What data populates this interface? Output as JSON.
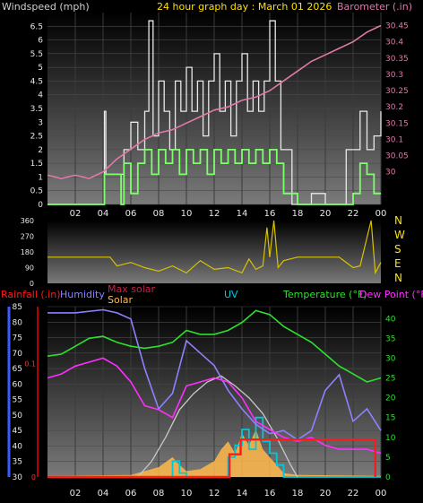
{
  "header": {
    "left_label": "Windspeed (mph)",
    "title": "24 hour graph day : March 01 2026",
    "right_label": "Barometer (.in)"
  },
  "colors": {
    "windspeed": "#e8e8e8",
    "gust": "#7dff6b",
    "barometer": "#e07aa8",
    "direction": "#d8c200",
    "humidity": "#8c82ff",
    "temperature": "#2ee02e",
    "dewpoint": "#ff2eff",
    "max_solar": "#c8c8c8",
    "solar": "#ffb84a",
    "uv": "#00c8d8",
    "rain": "#ff1a1a",
    "axis_blue": "#3b5bff",
    "title": "#ffe000"
  },
  "chart_data": [
    {
      "type": "line",
      "name": "wind-barometer",
      "x_ticks": [
        "02",
        "04",
        "06",
        "08",
        "10",
        "12",
        "14",
        "16",
        "18",
        "20",
        "22",
        "00"
      ],
      "ylim_left": [
        0,
        7
      ],
      "left_ticks": [
        "0",
        "0.5",
        "1",
        "1.5",
        "2",
        "2.5",
        "3",
        "3.5",
        "4",
        "4.5",
        "5",
        "5.5",
        "6",
        "6.5"
      ],
      "ylim_right": [
        29.9,
        30.49
      ],
      "right_ticks": [
        "30",
        "30.05",
        "30.1",
        "30.15",
        "30.2",
        "30.25",
        "30.3",
        "30.35",
        "30.4",
        "30.45"
      ],
      "wind_avg": [
        [
          0,
          0
        ],
        [
          3.9,
          0
        ],
        [
          4.1,
          1.1
        ],
        [
          5.2,
          1.1
        ],
        [
          5.3,
          0
        ],
        [
          5.5,
          1.5
        ],
        [
          6,
          0.4
        ],
        [
          6.5,
          1.5
        ],
        [
          7,
          2
        ],
        [
          7.5,
          1.1
        ],
        [
          8,
          2
        ],
        [
          8.5,
          1.5
        ],
        [
          9,
          2
        ],
        [
          9.5,
          1.1
        ],
        [
          10,
          2
        ],
        [
          10.5,
          1.5
        ],
        [
          11,
          2
        ],
        [
          11.5,
          1.1
        ],
        [
          12,
          2
        ],
        [
          12.5,
          1.5
        ],
        [
          13,
          2
        ],
        [
          13.5,
          1.5
        ],
        [
          14,
          2
        ],
        [
          14.5,
          1.5
        ],
        [
          15,
          2
        ],
        [
          15.5,
          1.5
        ],
        [
          16,
          2
        ],
        [
          16.5,
          1.5
        ],
        [
          17,
          0.4
        ],
        [
          17.5,
          0.4
        ],
        [
          18,
          0
        ],
        [
          21.5,
          0
        ],
        [
          22,
          0.4
        ],
        [
          22.5,
          1.5
        ],
        [
          23,
          1.1
        ],
        [
          23.5,
          0.4
        ],
        [
          24,
          0.4
        ]
      ],
      "wind_gust": [
        [
          0,
          0
        ],
        [
          4.0,
          0
        ],
        [
          4.1,
          3.4
        ],
        [
          4.2,
          1.1
        ],
        [
          5.5,
          2
        ],
        [
          6,
          3
        ],
        [
          6.5,
          2
        ],
        [
          7,
          3.4
        ],
        [
          7.3,
          6.7
        ],
        [
          7.6,
          2.5
        ],
        [
          8,
          4.5
        ],
        [
          8.4,
          3.4
        ],
        [
          8.8,
          2
        ],
        [
          9.2,
          4.5
        ],
        [
          9.6,
          3.4
        ],
        [
          10,
          5
        ],
        [
          10.4,
          3.4
        ],
        [
          10.8,
          4.5
        ],
        [
          11.2,
          2.5
        ],
        [
          11.6,
          4.5
        ],
        [
          12,
          5.5
        ],
        [
          12.4,
          3.4
        ],
        [
          12.8,
          4.5
        ],
        [
          13.2,
          2.5
        ],
        [
          13.6,
          4.5
        ],
        [
          14,
          5.5
        ],
        [
          14.4,
          3.4
        ],
        [
          14.8,
          4.5
        ],
        [
          15.2,
          3.4
        ],
        [
          15.6,
          4.5
        ],
        [
          16,
          6.7
        ],
        [
          16.4,
          4.5
        ],
        [
          16.8,
          2
        ],
        [
          17.2,
          2
        ],
        [
          17.6,
          0
        ],
        [
          18,
          0
        ],
        [
          19,
          0.4
        ],
        [
          20,
          0
        ],
        [
          21.5,
          2
        ],
        [
          22,
          2
        ],
        [
          22.5,
          3.4
        ],
        [
          23,
          2
        ],
        [
          23.5,
          2.5
        ],
        [
          24,
          3.4
        ]
      ],
      "barometer": [
        [
          0,
          29.99
        ],
        [
          1,
          29.98
        ],
        [
          2,
          29.99
        ],
        [
          3,
          29.98
        ],
        [
          4,
          30.0
        ],
        [
          5,
          30.04
        ],
        [
          6,
          30.07
        ],
        [
          7,
          30.1
        ],
        [
          8,
          30.12
        ],
        [
          9,
          30.13
        ],
        [
          10,
          30.15
        ],
        [
          11,
          30.17
        ],
        [
          12,
          30.19
        ],
        [
          13,
          30.2
        ],
        [
          14,
          30.22
        ],
        [
          15,
          30.23
        ],
        [
          16,
          30.25
        ],
        [
          17,
          30.28
        ],
        [
          18,
          30.31
        ],
        [
          19,
          30.34
        ],
        [
          20,
          30.36
        ],
        [
          21,
          30.38
        ],
        [
          22,
          30.4
        ],
        [
          23,
          30.43
        ],
        [
          24,
          30.45
        ]
      ]
    },
    {
      "type": "line",
      "name": "wind-direction",
      "ylim": [
        0,
        360
      ],
      "y_ticks": [
        "0",
        "90",
        "180",
        "270",
        "360"
      ],
      "compass": [
        "N",
        "W",
        "S",
        "E",
        "N"
      ],
      "values": [
        [
          0,
          150
        ],
        [
          4.5,
          150
        ],
        [
          5,
          100
        ],
        [
          6,
          120
        ],
        [
          7,
          90
        ],
        [
          8,
          70
        ],
        [
          9,
          100
        ],
        [
          10,
          60
        ],
        [
          11,
          130
        ],
        [
          12,
          80
        ],
        [
          13,
          90
        ],
        [
          14,
          60
        ],
        [
          14.5,
          140
        ],
        [
          15,
          80
        ],
        [
          15.5,
          100
        ],
        [
          15.8,
          320
        ],
        [
          16,
          150
        ],
        [
          16.3,
          360
        ],
        [
          16.6,
          90
        ],
        [
          17,
          130
        ],
        [
          18,
          150
        ],
        [
          21,
          150
        ],
        [
          22,
          90
        ],
        [
          22.5,
          100
        ],
        [
          23.3,
          360
        ],
        [
          23.6,
          60
        ],
        [
          24,
          120
        ]
      ]
    },
    {
      "type": "line",
      "name": "temperature-humidity",
      "header": {
        "rainfall": "Rainfall (.in)",
        "humidity": "Humidity",
        "max_solar": "Max solar",
        "solar": "Solar",
        "uv": "UV",
        "temperature": "Temperature (°F)",
        "dewpoint": "Dew Point (°F)"
      },
      "ylim_humidity": [
        30,
        85
      ],
      "humidity_ticks": [
        "30",
        "35",
        "40",
        "45",
        "50",
        "55",
        "60",
        "65",
        "70",
        "75",
        "80",
        "85"
      ],
      "ylim_temp": [
        0,
        43
      ],
      "temp_ticks": [
        "0",
        "5",
        "10",
        "15",
        "20",
        "25",
        "30",
        "35",
        "40"
      ],
      "ylim_rain": [
        0,
        0.15
      ],
      "rain_ticks": [
        "0",
        "0.1"
      ],
      "temperature": [
        [
          0,
          30.5
        ],
        [
          1,
          31
        ],
        [
          2,
          33
        ],
        [
          3,
          35
        ],
        [
          4,
          35.5
        ],
        [
          5,
          34
        ],
        [
          6,
          33
        ],
        [
          7,
          32.5
        ],
        [
          8,
          33
        ],
        [
          9,
          34
        ],
        [
          10,
          37
        ],
        [
          11,
          36
        ],
        [
          12,
          36
        ],
        [
          13,
          37
        ],
        [
          14,
          39
        ],
        [
          15,
          42
        ],
        [
          16,
          41
        ],
        [
          17,
          38
        ],
        [
          18,
          36
        ],
        [
          19,
          34
        ],
        [
          20,
          31
        ],
        [
          21,
          28
        ],
        [
          22,
          26
        ],
        [
          23,
          24
        ],
        [
          24,
          25
        ]
      ],
      "humidity": [
        [
          0,
          83
        ],
        [
          2,
          83
        ],
        [
          4,
          84
        ],
        [
          5,
          83
        ],
        [
          6,
          81
        ],
        [
          7,
          65
        ],
        [
          8,
          52
        ],
        [
          9,
          57
        ],
        [
          10,
          74
        ],
        [
          11,
          70
        ],
        [
          12,
          66
        ],
        [
          13,
          58
        ],
        [
          14,
          52
        ],
        [
          15,
          47
        ],
        [
          16,
          44
        ],
        [
          17,
          45
        ],
        [
          18,
          42
        ],
        [
          19,
          45
        ],
        [
          20,
          58
        ],
        [
          21,
          63
        ],
        [
          22,
          48
        ],
        [
          23,
          52
        ],
        [
          24,
          45
        ]
      ],
      "dewpoint": [
        [
          0,
          25
        ],
        [
          1,
          26
        ],
        [
          2,
          28
        ],
        [
          3,
          29
        ],
        [
          4,
          30
        ],
        [
          5,
          28
        ],
        [
          6,
          24
        ],
        [
          7,
          18
        ],
        [
          8,
          17
        ],
        [
          9,
          15
        ],
        [
          10,
          23
        ],
        [
          11,
          24
        ],
        [
          12,
          25
        ],
        [
          13,
          24
        ],
        [
          14,
          20
        ],
        [
          15,
          14
        ],
        [
          16,
          12
        ],
        [
          17,
          10
        ],
        [
          18,
          9
        ],
        [
          19,
          10
        ],
        [
          20,
          8
        ],
        [
          21,
          7
        ],
        [
          22,
          7
        ],
        [
          23,
          7
        ],
        [
          24,
          6
        ]
      ],
      "max_solar": [
        [
          6.5,
          0
        ],
        [
          7.5,
          4
        ],
        [
          8.5,
          10
        ],
        [
          9.5,
          17
        ],
        [
          10.5,
          21
        ],
        [
          11.5,
          24
        ],
        [
          12.5,
          25.5
        ],
        [
          13.5,
          23
        ],
        [
          14.5,
          20
        ],
        [
          15.5,
          16
        ],
        [
          16.5,
          10
        ],
        [
          17.5,
          3
        ],
        [
          18,
          0
        ]
      ],
      "solar": [
        [
          0,
          0.3
        ],
        [
          6,
          0.5
        ],
        [
          7,
          1.5
        ],
        [
          8,
          2.5
        ],
        [
          9,
          5
        ],
        [
          9.5,
          3
        ],
        [
          10,
          1.5
        ],
        [
          11,
          2
        ],
        [
          12,
          4
        ],
        [
          12.5,
          7
        ],
        [
          13,
          9
        ],
        [
          13.5,
          6
        ],
        [
          14,
          11
        ],
        [
          14.5,
          8
        ],
        [
          15,
          12
        ],
        [
          15.5,
          7
        ],
        [
          16,
          5
        ],
        [
          16.5,
          3
        ],
        [
          17,
          1
        ],
        [
          18,
          0.5
        ],
        [
          24,
          0.3
        ]
      ],
      "uv": [
        [
          0,
          0
        ],
        [
          8.5,
          0
        ],
        [
          9,
          4
        ],
        [
          9.5,
          1
        ],
        [
          10,
          0
        ],
        [
          12.5,
          0
        ],
        [
          13,
          5
        ],
        [
          13.5,
          8
        ],
        [
          14,
          12
        ],
        [
          14.5,
          7
        ],
        [
          15,
          15
        ],
        [
          15.5,
          9
        ],
        [
          16,
          6
        ],
        [
          16.5,
          3
        ],
        [
          17,
          0
        ],
        [
          24,
          0
        ]
      ],
      "rain": [
        [
          0,
          0
        ],
        [
          13,
          0
        ],
        [
          13.1,
          0.02
        ],
        [
          13.8,
          0.02
        ],
        [
          13.9,
          0.033
        ],
        [
          23.5,
          0.033
        ],
        [
          23.6,
          0
        ]
      ],
      "x_ticks": [
        "02",
        "04",
        "06",
        "08",
        "10",
        "12",
        "14",
        "16",
        "18",
        "20",
        "22",
        "00"
      ]
    }
  ]
}
